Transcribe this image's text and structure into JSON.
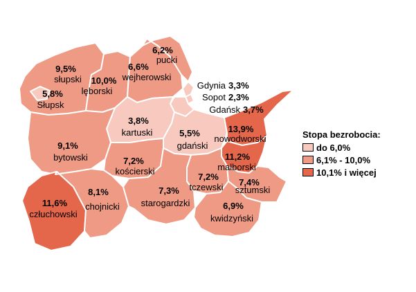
{
  "legend": {
    "title": "Stopa bezrobocia:",
    "items": [
      {
        "label": "do 6,0%",
        "color": "#f7c9bf"
      },
      {
        "label": "6,1% - 10,0%",
        "color": "#ee9a84"
      },
      {
        "label": "10,1% i więcej",
        "color": "#e4674c"
      }
    ]
  },
  "border_color": "#ffffff",
  "districts": [
    {
      "name": "słupski",
      "value": "9,5%",
      "class": 2
    },
    {
      "name": "Słupsk",
      "value": "5,8%",
      "class": 1
    },
    {
      "name": "lęborski",
      "value": "10,0%",
      "class": 2
    },
    {
      "name": "wejherowski",
      "value": "6,6%",
      "class": 2
    },
    {
      "name": "pucki",
      "value": "6,2%",
      "class": 2
    },
    {
      "name": "Gdynia",
      "value": "3,3%",
      "class": 1
    },
    {
      "name": "Sopot",
      "value": "2,3%",
      "class": 1
    },
    {
      "name": "Gdańsk",
      "value": "3,7%",
      "class": 1
    },
    {
      "name": "kartuski",
      "value": "3,8%",
      "class": 1
    },
    {
      "name": "gdański",
      "value": "5,5%",
      "class": 1
    },
    {
      "name": "nowodworski",
      "value": "13,9%",
      "class": 3
    },
    {
      "name": "bytowski",
      "value": "9,1%",
      "class": 2
    },
    {
      "name": "kościerski",
      "value": "7,2%",
      "class": 2
    },
    {
      "name": "malborski",
      "value": "11,2%",
      "class": 3
    },
    {
      "name": "tczewski",
      "value": "7,2%",
      "class": 2
    },
    {
      "name": "sztumski",
      "value": "7,4%",
      "class": 2
    },
    {
      "name": "człuchowski",
      "value": "11,6%",
      "class": 3
    },
    {
      "name": "chojnicki",
      "value": "8,1%",
      "class": 2
    },
    {
      "name": "starogardzki",
      "value": "7,3%",
      "class": 2
    },
    {
      "name": "kwidzyński",
      "value": "6,9%",
      "class": 2
    }
  ]
}
